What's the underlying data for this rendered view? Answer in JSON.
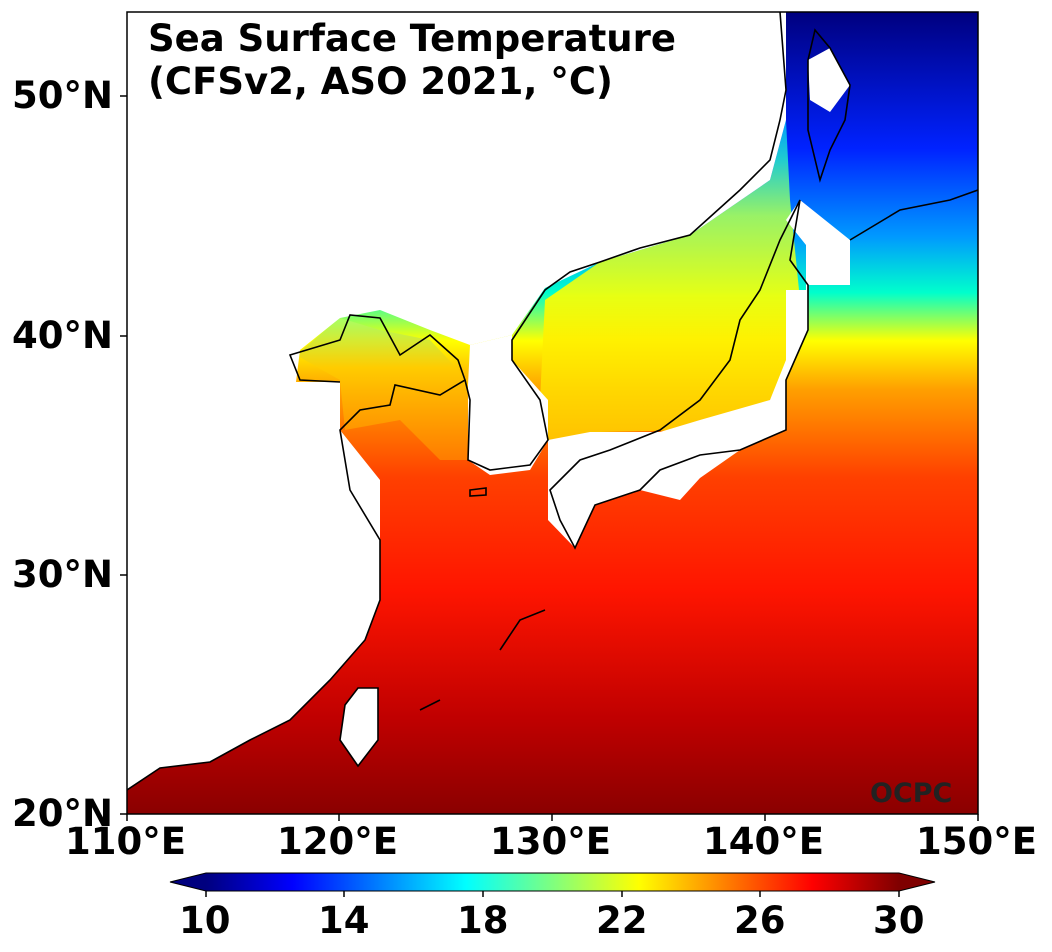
{
  "map": {
    "title_line1": "Sea Surface Temperature",
    "title_line2": "(CFSv2, ASO 2021, °C)",
    "credit": "OCPC",
    "lat_ticks": [
      "50°N",
      "40°N",
      "30°N",
      "20°N"
    ],
    "lon_ticks": [
      "110°E",
      "120°E",
      "130°E",
      "140°E",
      "150°E"
    ]
  },
  "colorbar": {
    "ticks": [
      "10",
      "14",
      "18",
      "22",
      "26",
      "30"
    ],
    "colormap": [
      "#00007f",
      "#0000ff",
      "#007fff",
      "#00ffff",
      "#7fff7f",
      "#ffff00",
      "#ff7f00",
      "#ff0000",
      "#7f0000"
    ],
    "extend": "both"
  }
}
